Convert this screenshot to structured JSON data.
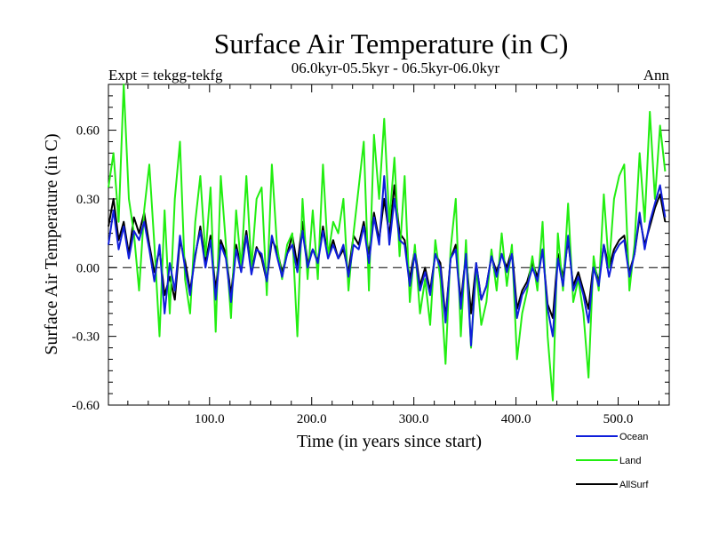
{
  "chart_data": {
    "type": "line",
    "title": "Surface Air Temperature (in C)",
    "subtitle_left": "Expt = tekgg-tekfg",
    "subtitle_center": "06.0kyr-05.5kyr - 06.5kyr-06.0kyr",
    "subtitle_right": "Ann",
    "xlabel": "Time (in years since start)",
    "ylabel": "Surface Air Temperature (in C)",
    "xlim": [
      1,
      550
    ],
    "ylim": [
      -0.6,
      0.8
    ],
    "x_tick_labels": [
      "100.0",
      "200.0",
      "300.0",
      "400.0",
      "500.0"
    ],
    "y_tick_labels": [
      "-0.60",
      "-0.30",
      "0.00",
      "0.30",
      "0.60"
    ],
    "zero_line": "dashed",
    "x_step": 5,
    "series": [
      {
        "name": "AllSurf",
        "color": "#000000",
        "values": [
          0.18,
          0.3,
          0.12,
          0.2,
          0.06,
          0.22,
          0.15,
          0.24,
          0.1,
          -0.02,
          0.08,
          -0.12,
          -0.04,
          -0.14,
          0.12,
          0.03,
          -0.1,
          0.05,
          0.18,
          0.02,
          0.14,
          -0.1,
          0.12,
          0.06,
          -0.12,
          0.1,
          0.0,
          0.16,
          -0.02,
          0.09,
          0.04,
          -0.06,
          0.12,
          0.08,
          -0.02,
          0.06,
          0.14,
          0.01,
          0.2,
          0.02,
          0.08,
          0.03,
          0.18,
          0.05,
          0.12,
          0.04,
          0.08,
          -0.02,
          0.14,
          0.1,
          0.2,
          0.06,
          0.24,
          0.12,
          0.3,
          0.14,
          0.36,
          0.15,
          0.12,
          -0.05,
          0.08,
          -0.08,
          0.0,
          -0.1,
          0.06,
          0.02,
          -0.22,
          0.04,
          0.1,
          -0.15,
          0.06,
          -0.2,
          0.02,
          -0.14,
          -0.08,
          0.05,
          -0.02,
          0.06,
          0.0,
          0.08,
          -0.18,
          -0.1,
          -0.06,
          0.02,
          -0.04,
          0.08,
          -0.16,
          -0.22,
          0.06,
          -0.04,
          0.12,
          -0.08,
          -0.02,
          -0.1,
          -0.18,
          0.02,
          -0.06,
          0.1,
          0.0,
          0.08,
          0.12,
          0.14,
          -0.02,
          0.06,
          0.22,
          0.1,
          0.18,
          0.26,
          0.32,
          0.2
        ]
      },
      {
        "name": "Land",
        "color": "#22ee11",
        "values": [
          0.35,
          0.5,
          0.2,
          0.8,
          0.3,
          0.15,
          -0.1,
          0.25,
          0.45,
          0.1,
          -0.3,
          0.25,
          -0.2,
          0.3,
          0.55,
          -0.05,
          -0.2,
          0.2,
          0.4,
          0.05,
          0.35,
          -0.28,
          0.4,
          0.1,
          -0.22,
          0.25,
          0.0,
          0.4,
          0.0,
          0.3,
          0.35,
          -0.12,
          0.45,
          0.1,
          -0.05,
          0.1,
          0.15,
          -0.3,
          0.3,
          -0.05,
          0.25,
          -0.05,
          0.45,
          0.05,
          0.2,
          0.15,
          0.3,
          -0.1,
          0.15,
          0.35,
          0.55,
          -0.1,
          0.58,
          0.3,
          0.65,
          0.2,
          0.48,
          0.05,
          0.4,
          -0.15,
          0.1,
          -0.2,
          -0.05,
          -0.25,
          0.12,
          -0.05,
          -0.42,
          0.08,
          0.3,
          -0.3,
          0.12,
          -0.35,
          0.0,
          -0.25,
          -0.15,
          0.08,
          -0.1,
          0.15,
          -0.08,
          0.1,
          -0.4,
          -0.2,
          -0.1,
          0.05,
          -0.1,
          0.2,
          -0.3,
          -0.58,
          0.15,
          -0.1,
          0.28,
          -0.15,
          -0.05,
          -0.2,
          -0.48,
          0.05,
          -0.1,
          0.32,
          0.0,
          0.3,
          0.4,
          0.45,
          -0.1,
          0.1,
          0.5,
          0.2,
          0.68,
          0.3,
          0.62,
          0.42
        ]
      },
      {
        "name": "Ocean",
        "color": "#0f1edb",
        "values": [
          0.1,
          0.25,
          0.08,
          0.18,
          0.04,
          0.16,
          0.12,
          0.2,
          0.08,
          -0.06,
          0.1,
          -0.2,
          0.02,
          -0.1,
          0.14,
          0.0,
          -0.12,
          0.06,
          0.16,
          0.0,
          0.12,
          -0.14,
          0.1,
          0.04,
          -0.15,
          0.08,
          -0.02,
          0.14,
          -0.03,
          0.08,
          0.06,
          -0.06,
          0.14,
          0.05,
          -0.04,
          0.06,
          0.1,
          -0.02,
          0.16,
          0.0,
          0.08,
          0.02,
          0.16,
          0.04,
          0.1,
          0.04,
          0.1,
          -0.04,
          0.1,
          0.08,
          0.18,
          0.02,
          0.22,
          0.1,
          0.4,
          0.1,
          0.3,
          0.12,
          0.1,
          -0.08,
          0.06,
          -0.1,
          -0.02,
          -0.12,
          0.06,
          0.0,
          -0.24,
          0.04,
          0.08,
          -0.18,
          0.06,
          -0.34,
          0.02,
          -0.14,
          -0.08,
          0.05,
          -0.04,
          0.06,
          -0.02,
          0.06,
          -0.22,
          -0.12,
          -0.08,
          0.0,
          -0.06,
          0.08,
          -0.18,
          -0.3,
          0.04,
          -0.08,
          0.14,
          -0.1,
          -0.04,
          -0.12,
          -0.24,
          0.0,
          -0.08,
          0.1,
          -0.04,
          0.06,
          0.1,
          0.12,
          -0.04,
          0.06,
          0.24,
          0.08,
          0.2,
          0.28,
          0.36,
          0.22
        ]
      }
    ],
    "legend": [
      {
        "label": "Ocean",
        "color": "#0f1edb"
      },
      {
        "label": "Land",
        "color": "#22ee11"
      },
      {
        "label": "AllSurf",
        "color": "#000000"
      }
    ]
  }
}
